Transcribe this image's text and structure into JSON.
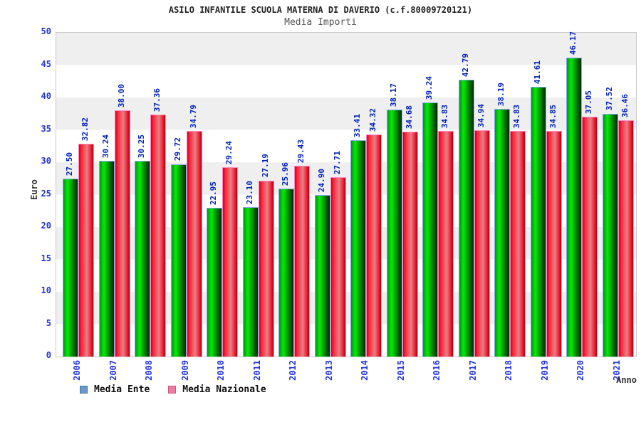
{
  "header": {
    "title": "ASILO INFANTILE SCUOLA MATERNA DI DAVERIO (c.f.80009720121)",
    "subtitle": "Media Importi"
  },
  "chart_data": {
    "type": "bar",
    "title": "ASILO INFANTILE SCUOLA MATERNA DI DAVERIO (c.f.80009720121)",
    "subtitle": "Media Importi",
    "xlabel": "Anno",
    "ylabel": "Euro",
    "ylim": [
      0,
      50
    ],
    "ytick_step": 5,
    "grid": "horizontal-bands",
    "legend_position": "bottom-left",
    "categories": [
      "2006",
      "2007",
      "2008",
      "2009",
      "2010",
      "2011",
      "2012",
      "2013",
      "2014",
      "2015",
      "2016",
      "2017",
      "2018",
      "2019",
      "2020",
      "2021"
    ],
    "series": [
      {
        "name": "Media Ente",
        "values": [
          27.5,
          30.24,
          30.25,
          29.72,
          22.95,
          23.1,
          25.96,
          24.9,
          33.41,
          38.17,
          39.24,
          42.79,
          38.19,
          41.61,
          46.17,
          37.52
        ],
        "bar_gradient": [
          "#009911",
          "#00ee00",
          "#006600",
          "#012901"
        ],
        "bar_border": "#86aaec",
        "legend_swatch_fill": "#6699cc",
        "legend_swatch_border": "#447799"
      },
      {
        "name": "Media Nazionale",
        "values": [
          32.82,
          38.0,
          37.36,
          34.79,
          29.24,
          27.19,
          29.43,
          27.71,
          34.32,
          34.68,
          34.83,
          34.94,
          34.83,
          34.85,
          37.05,
          36.46
        ],
        "bar_gradient": [
          "#cc0022",
          "#ff2233",
          "#e58088",
          "#aa0018"
        ],
        "bar_border": "#ff85c0",
        "legend_swatch_fill": "#ee7ba0",
        "legend_swatch_border": "#cc5580"
      }
    ],
    "value_label_color": "#0022bb",
    "axis_label_color": "#2233dd",
    "band_color": "#efefef",
    "plot_border_color": "#c8c8c8",
    "value_label_format": "0.00",
    "value_label_rotation": -90,
    "xtick_rotation": -90
  }
}
